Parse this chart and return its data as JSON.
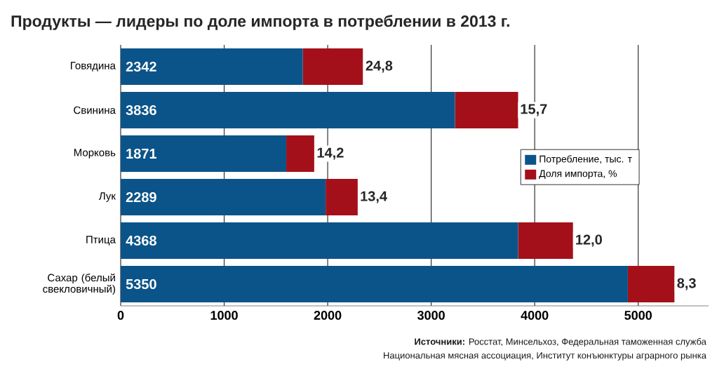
{
  "chart_data": {
    "type": "bar",
    "orientation": "horizontal",
    "stacked": true,
    "title": "Продукты — лидеры по доле импорта в потреблении в 2013 г.",
    "categories": [
      "Говядина",
      "Свинина",
      "Морковь",
      "Лук",
      "Птица",
      "Сахар (белый свекловичный)"
    ],
    "series": [
      {
        "name": "Потребление, тыс. т",
        "color": "#0b5489",
        "values": [
          1760,
          3230,
          1600,
          1980,
          3840,
          4900
        ]
      },
      {
        "name": "Доля импорта, %",
        "color": "#a4101a",
        "values": [
          580,
          610,
          270,
          310,
          530,
          450
        ]
      }
    ],
    "xlim": [
      0,
      5680
    ],
    "xticks": [
      0,
      1000,
      2000,
      3000,
      4000,
      5000
    ],
    "grid": "x",
    "legend": "right",
    "annotations": [
      "**Источники:** Росстат, Минсельхоз, Федеральная таможенная служба",
      "Национальная мясная ассоциация, Институт конъюнктуры аграрного рынка",
      {
        "text": "2342",
        "y": "Говядина"
      },
      {
        "text": "3836",
        "y": "Свинина"
      },
      {
        "text": "1871",
        "y": "Морковь"
      },
      {
        "text": "2289",
        "y": "Лук"
      },
      {
        "text": "4368",
        "y": "Птица"
      },
      {
        "text": "5350",
        "y": "Сахар (белый свекловичный)"
      },
      {
        "text": "24,8",
        "x": 2342,
        "y": "Говядина"
      },
      {
        "text": "15,7",
        "x": 3836,
        "y": "Свинина"
      },
      {
        "text": "14,2",
        "x": 1871,
        "y": "Морковь"
      },
      {
        "text": "13,4",
        "x": 2289,
        "y": "Лук"
      },
      {
        "text": "12,0",
        "x": 4368,
        "y": "Птица"
      },
      {
        "text": "8,3",
        "x": 5350,
        "y": "Сахар (белый свекловичный)"
      }
    ]
  }
}
